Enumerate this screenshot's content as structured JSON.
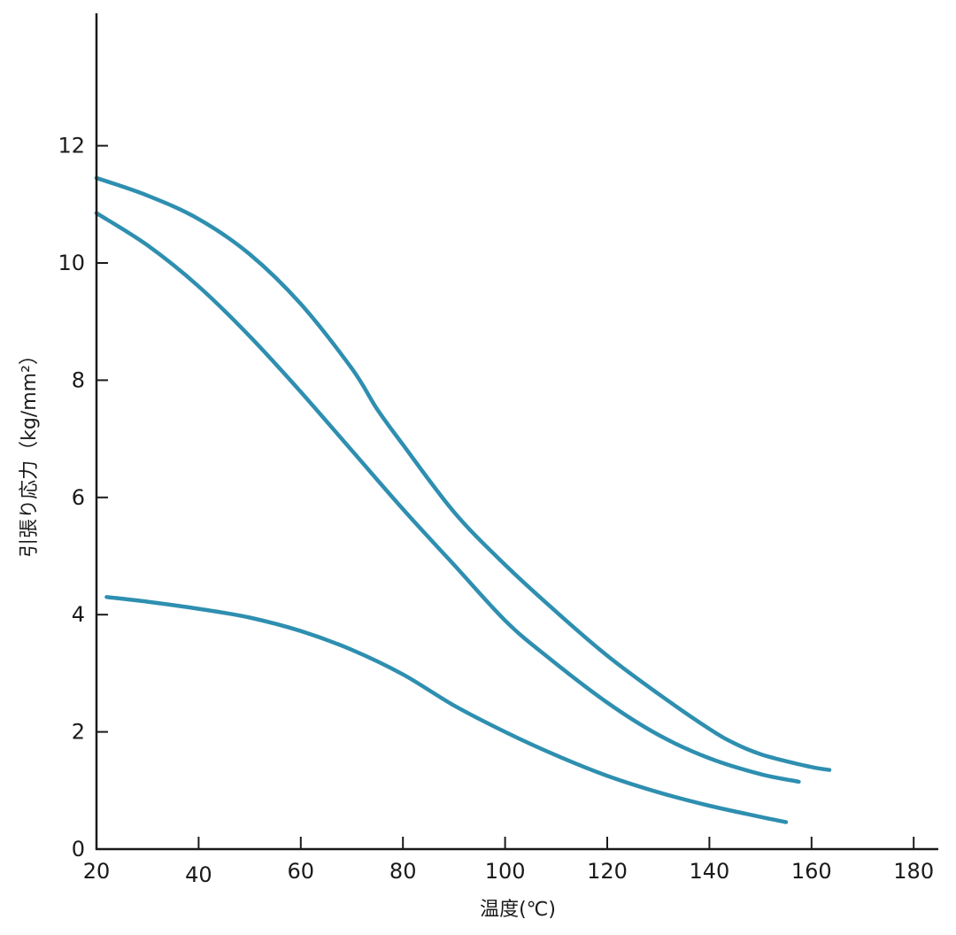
{
  "chart_data": {
    "type": "line",
    "title": "",
    "xlabel": "温度(℃)",
    "ylabel": "引張り応力（kg/mm²）",
    "xlim": [
      20,
      184
    ],
    "ylim": [
      0,
      14.2
    ],
    "x_ticks": [
      20,
      40,
      60,
      80,
      100,
      120,
      140,
      160,
      180
    ],
    "y_ticks": [
      0,
      2,
      4,
      6,
      8,
      10,
      12
    ],
    "grid": false,
    "legend": "none",
    "line_color": "#2e8fb0",
    "axis_color": "#1a1a1a",
    "series": [
      {
        "points": [
          [
            20,
            11.45
          ],
          [
            30,
            11.15
          ],
          [
            40,
            10.75
          ],
          [
            50,
            10.15
          ],
          [
            60,
            9.3
          ],
          [
            70,
            8.2
          ],
          [
            75,
            7.5
          ],
          [
            80,
            6.9
          ],
          [
            90,
            5.75
          ],
          [
            100,
            4.85
          ],
          [
            110,
            4.05
          ],
          [
            120,
            3.3
          ],
          [
            130,
            2.65
          ],
          [
            140,
            2.05
          ],
          [
            145,
            1.8
          ],
          [
            150,
            1.62
          ],
          [
            155,
            1.5
          ],
          [
            160,
            1.4
          ],
          [
            163.5,
            1.35
          ]
        ]
      },
      {
        "points": [
          [
            20,
            10.85
          ],
          [
            30,
            10.3
          ],
          [
            40,
            9.6
          ],
          [
            50,
            8.75
          ],
          [
            60,
            7.8
          ],
          [
            70,
            6.8
          ],
          [
            80,
            5.8
          ],
          [
            90,
            4.85
          ],
          [
            100,
            3.9
          ],
          [
            108,
            3.3
          ],
          [
            120,
            2.5
          ],
          [
            130,
            1.95
          ],
          [
            140,
            1.55
          ],
          [
            150,
            1.28
          ],
          [
            157.5,
            1.15
          ]
        ]
      },
      {
        "points": [
          [
            22,
            4.3
          ],
          [
            30,
            4.22
          ],
          [
            40,
            4.1
          ],
          [
            50,
            3.95
          ],
          [
            60,
            3.72
          ],
          [
            70,
            3.4
          ],
          [
            80,
            2.98
          ],
          [
            90,
            2.45
          ],
          [
            100,
            2.0
          ],
          [
            110,
            1.6
          ],
          [
            120,
            1.25
          ],
          [
            130,
            0.97
          ],
          [
            140,
            0.74
          ],
          [
            150,
            0.55
          ],
          [
            155,
            0.46
          ]
        ]
      }
    ]
  }
}
